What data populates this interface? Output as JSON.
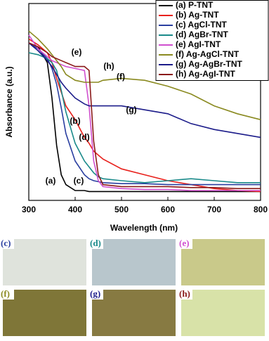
{
  "chart_data": {
    "type": "line",
    "x_label": "Wavelength (nm)",
    "y_label": "Absorbance (a.u.)",
    "xlim": [
      300,
      800
    ],
    "xticks": [
      300,
      400,
      500,
      600,
      700,
      800
    ],
    "ylim": [
      0,
      1
    ],
    "x": [
      300,
      320,
      340,
      350,
      360,
      370,
      380,
      400,
      420,
      430,
      440,
      450,
      460,
      500,
      550,
      600,
      650,
      700,
      750,
      800
    ],
    "series": [
      {
        "name": "(a) P-TNT",
        "color": "#000000",
        "values": [
          0.8,
          0.78,
          0.7,
          0.52,
          0.28,
          0.13,
          0.08,
          0.05,
          0.05,
          0.045,
          0.045,
          0.045,
          0.045,
          0.045,
          0.045,
          0.045,
          0.045,
          0.045,
          0.045,
          0.045
        ]
      },
      {
        "name": "(b) Ag-TNT",
        "color": "#e8211c",
        "values": [
          0.82,
          0.79,
          0.75,
          0.7,
          0.62,
          0.55,
          0.48,
          0.41,
          0.32,
          0.29,
          0.25,
          0.23,
          0.21,
          0.16,
          0.13,
          0.1,
          0.08,
          0.06,
          0.05,
          0.045
        ]
      },
      {
        "name": "(c) AgCl-TNT",
        "color": "#2a3fa0",
        "values": [
          0.8,
          0.77,
          0.72,
          0.67,
          0.59,
          0.47,
          0.34,
          0.2,
          0.13,
          0.11,
          0.1,
          0.095,
          0.09,
          0.085,
          0.085,
          0.08,
          0.08,
          0.08,
          0.08,
          0.08
        ]
      },
      {
        "name": "(d) AgBr-TNT",
        "color": "#1a8a8a",
        "values": [
          0.75,
          0.74,
          0.72,
          0.7,
          0.66,
          0.56,
          0.45,
          0.29,
          0.2,
          0.17,
          0.14,
          0.12,
          0.11,
          0.1,
          0.09,
          0.1,
          0.11,
          0.1,
          0.09,
          0.09
        ]
      },
      {
        "name": "(e) AgI-TNT",
        "color": "#d04fcf",
        "values": [
          0.84,
          0.77,
          0.73,
          0.71,
          0.7,
          0.69,
          0.68,
          0.67,
          0.66,
          0.48,
          0.2,
          0.1,
          0.07,
          0.06,
          0.055,
          0.055,
          0.05,
          0.05,
          0.05,
          0.05
        ]
      },
      {
        "name": "(f) Ag-AgCl-TNT",
        "color": "#8a8a20",
        "values": [
          0.86,
          0.82,
          0.77,
          0.74,
          0.71,
          0.68,
          0.64,
          0.61,
          0.6,
          0.6,
          0.6,
          0.6,
          0.61,
          0.62,
          0.61,
          0.58,
          0.54,
          0.48,
          0.44,
          0.41
        ]
      },
      {
        "name": "(g) Ag-AgBr-TNT",
        "color": "#1c1c8a",
        "values": [
          0.8,
          0.76,
          0.71,
          0.68,
          0.64,
          0.6,
          0.57,
          0.52,
          0.49,
          0.48,
          0.48,
          0.48,
          0.48,
          0.48,
          0.46,
          0.44,
          0.39,
          0.36,
          0.34,
          0.32
        ]
      },
      {
        "name": "(h) Ag-AgI-TNT",
        "color": "#8a1a1a",
        "values": [
          0.8,
          0.78,
          0.75,
          0.73,
          0.72,
          0.71,
          0.7,
          0.68,
          0.68,
          0.66,
          0.3,
          0.13,
          0.08,
          0.07,
          0.07,
          0.07,
          0.065,
          0.065,
          0.06,
          0.06
        ]
      }
    ],
    "annotations": [
      "(a)",
      "(b)",
      "(c)",
      "(d)",
      "(e)",
      "(f)",
      "(g)",
      "(h)"
    ],
    "panels": [
      "(c)",
      "(d)",
      "(e)",
      "(f)",
      "(g)",
      "(h)"
    ]
  }
}
